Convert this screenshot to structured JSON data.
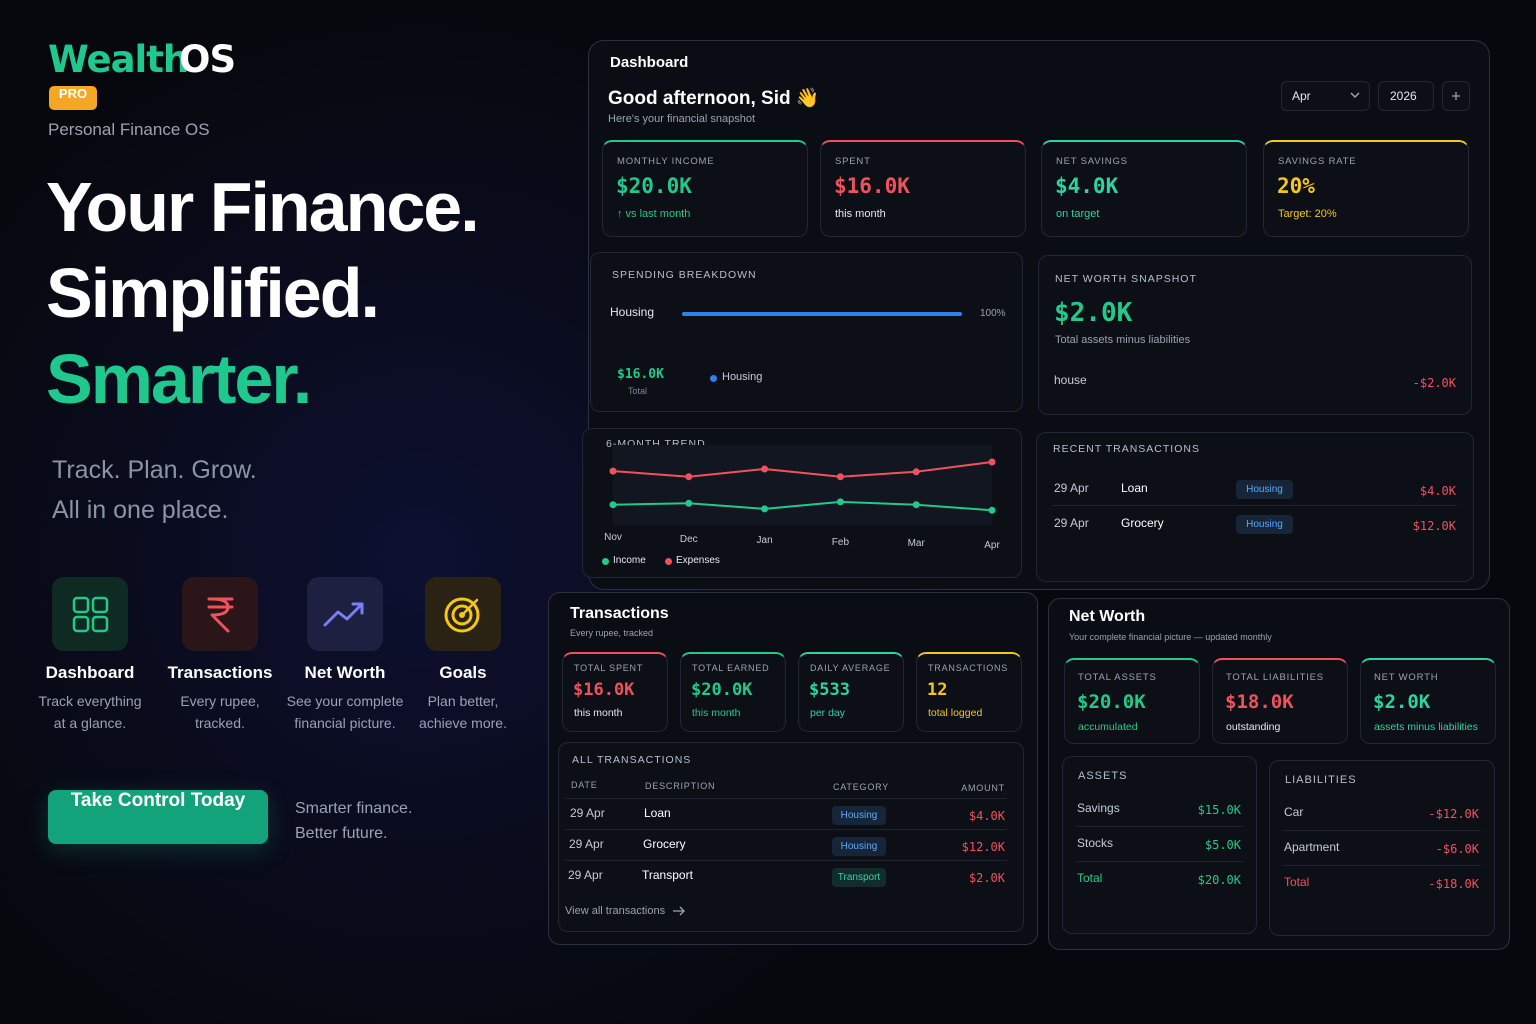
{
  "brand": {
    "name": [
      "Wealth",
      "OS"
    ],
    "badge": "PRO",
    "tagline": "Personal Finance OS"
  },
  "hero": {
    "lines": [
      "Your Finance.",
      "Simplified.",
      "Smarter."
    ],
    "sub": [
      "Track. Plan. Grow.",
      "All in one place."
    ]
  },
  "features": [
    {
      "title": "Dashboard",
      "desc": [
        "Track everything",
        "at a glance."
      ]
    },
    {
      "title": "Transactions",
      "desc": [
        "Every rupee,",
        "tracked."
      ]
    },
    {
      "title": "Net Worth",
      "desc": [
        "See your complete",
        "financial picture."
      ]
    },
    {
      "title": "Goals",
      "desc": [
        "Plan better,",
        "achieve more."
      ]
    }
  ],
  "cta": {
    "button": "Take Control Today",
    "note": [
      "Smarter finance.",
      "Better future."
    ]
  },
  "dashboard": {
    "title": "Dashboard",
    "greeting": "Good afternoon, Sid 👋",
    "subtitle": "Here's your financial snapshot",
    "month": "Apr",
    "year": "2026",
    "kpis": [
      {
        "label": "MONTHLY INCOME",
        "value": "$20.0K",
        "note": "↑ vs last month",
        "color": "#22c98a"
      },
      {
        "label": "SPENT",
        "value": "$16.0K",
        "note": "this month",
        "color": "#f0525d"
      },
      {
        "label": "NET SAVINGS",
        "value": "$4.0K",
        "note": "on target",
        "color": "#2dd4a0"
      },
      {
        "label": "SAVINGS RATE",
        "value": "20%",
        "note": "Target: 20%",
        "color": "#f5c518"
      }
    ],
    "breakdown": {
      "title": "SPENDING BREAKDOWN",
      "xlim": [
        0,
        100
      ],
      "rows": [
        {
          "name": "Housing",
          "value": 100,
          "value_label": "100%",
          "color": "#2f80ed"
        }
      ],
      "total": "$16.0K",
      "total_label": "Total",
      "legend": [
        "Housing"
      ]
    },
    "snapshot": {
      "title": "NET WORTH SNAPSHOT",
      "value": "$2.0K",
      "subtitle": "Total assets minus liabilities",
      "rows": [
        {
          "name": "house",
          "amount": "-$2.0K"
        }
      ]
    },
    "trend": {
      "type": "line",
      "title": "6-MONTH TREND",
      "categories": [
        "Nov",
        "Dec",
        "Jan",
        "Feb",
        "Mar",
        "Apr"
      ],
      "ylim": [
        0,
        100
      ],
      "series": [
        {
          "name": "Income",
          "color": "#22c98a",
          "values": [
            29,
            31,
            23,
            33,
            29,
            21
          ]
        },
        {
          "name": "Expenses",
          "color": "#f0525d",
          "values": [
            77,
            69,
            80,
            69,
            76,
            90
          ]
        }
      ]
    },
    "recent": {
      "title": "RECENT TRANSACTIONS",
      "rows": [
        {
          "date": "29 Apr",
          "description": "Loan",
          "category": "Housing",
          "amount": "$4.0K",
          "color": "#5aa9ff"
        },
        {
          "date": "29 Apr",
          "description": "Grocery",
          "category": "Housing",
          "amount": "$12.0K",
          "color": "#5aa9ff"
        }
      ]
    }
  },
  "transactions": {
    "title": "Transactions",
    "subtitle": "Every rupee, tracked",
    "kpis": [
      {
        "label": "TOTAL SPENT",
        "value": "$16.0K",
        "note": "this month",
        "color": "#f0525d"
      },
      {
        "label": "TOTAL EARNED",
        "value": "$20.0K",
        "note": "this month",
        "color": "#22c98a"
      },
      {
        "label": "DAILY AVERAGE",
        "value": "$533",
        "note": "per day",
        "color": "#2dd4a0"
      },
      {
        "label": "TRANSACTIONS",
        "value": "12",
        "note": "total logged",
        "color": "#f5c518"
      }
    ],
    "table": {
      "title": "ALL TRANSACTIONS",
      "headers": [
        "DATE",
        "DESCRIPTION",
        "CATEGORY",
        "AMOUNT"
      ],
      "rows": [
        {
          "date": "29 Apr",
          "description": "Loan",
          "category": "Housing",
          "amount": "$4.0K",
          "color": "#5aa9ff"
        },
        {
          "date": "29 Apr",
          "description": "Grocery",
          "category": "Housing",
          "amount": "$12.0K",
          "color": "#5aa9ff"
        },
        {
          "date": "29 Apr",
          "description": "Transport",
          "category": "Transport",
          "amount": "$2.0K",
          "color": "#2dd4a0"
        }
      ],
      "link": "View all transactions"
    }
  },
  "net_worth": {
    "title": "Net Worth",
    "subtitle": "Your complete financial picture — updated monthly",
    "kpis": [
      {
        "label": "TOTAL ASSETS",
        "value": "$20.0K",
        "note": "accumulated",
        "color": "#22c98a"
      },
      {
        "label": "TOTAL LIABILITIES",
        "value": "$18.0K",
        "note": "outstanding",
        "color": "#f0525d"
      },
      {
        "label": "NET WORTH",
        "value": "$2.0K",
        "note": "assets minus liabilities",
        "color": "#2dd4a0"
      }
    ],
    "assets": {
      "title": "ASSETS",
      "color": "#22c98a",
      "rows": [
        {
          "name": "Savings",
          "amount": "$15.0K"
        },
        {
          "name": "Stocks",
          "amount": "$5.0K"
        },
        {
          "name": "Total",
          "amount": "$20.0K"
        }
      ]
    },
    "liabilities": {
      "title": "LIABILITIES",
      "color": "#f0525d",
      "rows": [
        {
          "name": "Car",
          "amount": "-$12.0K"
        },
        {
          "name": "Apartment",
          "amount": "-$6.0K"
        },
        {
          "name": "Total",
          "amount": "-$18.0K"
        }
      ]
    }
  }
}
